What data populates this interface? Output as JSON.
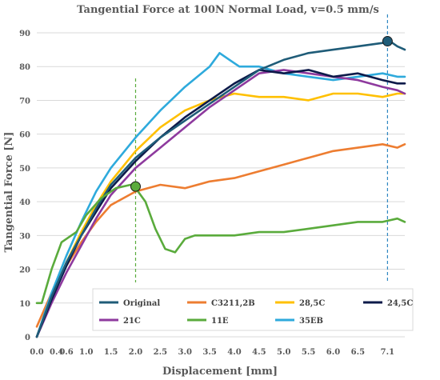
{
  "chart_data": {
    "type": "line",
    "title": "Tangential Force at  100N Normal Load, v=0.5 mm/s",
    "xlabel": "Displacement [mm]",
    "ylabel": "Tangential Force [N]",
    "xlim": [
      0,
      7.45
    ],
    "ylim": [
      0,
      90
    ],
    "x_ticks": [
      0.0,
      0.4,
      0.6,
      1.0,
      1.5,
      2.0,
      2.5,
      3.0,
      3.5,
      4.0,
      4.5,
      5.0,
      5.5,
      6.0,
      6.5,
      7.1
    ],
    "x_tick_labels": [
      "0.0",
      "0.4",
      "0.6",
      "1.0",
      "1.5",
      "2.0",
      "2.5",
      "3.0",
      "3.5",
      "4.0",
      "4.5",
      "5.0",
      "5.5",
      "6.0",
      "6.5",
      "7.1"
    ],
    "y_ticks": [
      0,
      10,
      20,
      30,
      40,
      50,
      60,
      70,
      80,
      90
    ],
    "y_tick_labels": [
      "0",
      "10",
      "20",
      "30",
      "40",
      "50",
      "60",
      "70",
      "80",
      "90"
    ],
    "grid": "horizontal",
    "legend_placement": "bottom-right",
    "series": [
      {
        "name": "Original",
        "color": "#1f5c78",
        "x": [
          0,
          0.3,
          0.6,
          0.9,
          1.2,
          1.5,
          2.0,
          2.5,
          3.0,
          3.5,
          4.0,
          4.5,
          5.0,
          5.5,
          6.0,
          6.5,
          7.0,
          7.1,
          7.3,
          7.45
        ],
        "y": [
          0,
          12,
          22,
          30,
          38,
          45,
          53,
          59,
          64,
          69,
          74,
          79,
          82,
          84,
          85,
          86,
          87,
          88,
          86,
          85
        ]
      },
      {
        "name": "C3211,2B",
        "color": "#ed7d31",
        "x": [
          0,
          0.3,
          0.6,
          0.9,
          1.2,
          1.5,
          2.0,
          2.5,
          3.0,
          3.5,
          4.0,
          4.5,
          5.0,
          5.5,
          6.0,
          6.5,
          7.0,
          7.3,
          7.45
        ],
        "y": [
          3,
          13,
          21,
          28,
          34,
          39,
          43,
          45,
          44,
          46,
          47,
          49,
          51,
          53,
          55,
          56,
          57,
          56,
          57
        ]
      },
      {
        "name": "28,5C",
        "color": "#ffc000",
        "x": [
          0,
          0.3,
          0.6,
          0.9,
          1.2,
          1.5,
          2.0,
          2.5,
          3.0,
          3.5,
          4.0,
          4.5,
          5.0,
          5.5,
          6.0,
          6.5,
          7.0,
          7.3,
          7.45
        ],
        "y": [
          0,
          12,
          22,
          31,
          39,
          46,
          55,
          62,
          67,
          70,
          72,
          71,
          71,
          70,
          72,
          72,
          71,
          72,
          72
        ]
      },
      {
        "name": "24,5C",
        "color": "#0d1a4a",
        "x": [
          0,
          0.3,
          0.6,
          0.9,
          1.2,
          1.5,
          2.0,
          2.5,
          3.0,
          3.5,
          4.0,
          4.5,
          5.0,
          5.5,
          6.0,
          6.5,
          7.0,
          7.3,
          7.45
        ],
        "y": [
          0,
          11,
          21,
          30,
          37,
          44,
          52,
          59,
          65,
          70,
          75,
          79,
          78,
          79,
          77,
          78,
          76,
          75,
          75
        ]
      },
      {
        "name": "21C",
        "color": "#8e3a9e",
        "x": [
          0,
          0.3,
          0.6,
          0.9,
          1.2,
          1.5,
          2.0,
          2.5,
          3.0,
          3.5,
          4.0,
          4.5,
          5.0,
          5.5,
          6.0,
          6.5,
          7.0,
          7.3,
          7.45
        ],
        "y": [
          0,
          10,
          19,
          27,
          35,
          42,
          50,
          56,
          62,
          68,
          73,
          78,
          79,
          78,
          77,
          76,
          74,
          73,
          72
        ]
      },
      {
        "name": "11E",
        "color": "#5aab3c",
        "x": [
          0,
          0.1,
          0.3,
          0.5,
          0.8,
          1.0,
          1.3,
          1.6,
          1.9,
          2.0,
          2.2,
          2.4,
          2.6,
          2.8,
          3.0,
          3.2,
          3.5,
          4.0,
          4.5,
          5.0,
          5.5,
          6.0,
          6.5,
          7.0,
          7.3,
          7.45
        ],
        "y": [
          10,
          10,
          20,
          28,
          31,
          36,
          41,
          44,
          45,
          44,
          40,
          32,
          26,
          25,
          29,
          30,
          30,
          30,
          31,
          31,
          32,
          33,
          34,
          34,
          35,
          34
        ]
      },
      {
        "name": "35EB",
        "color": "#2eaadc",
        "x": [
          0,
          0.3,
          0.6,
          0.9,
          1.2,
          1.5,
          2.0,
          2.5,
          3.0,
          3.5,
          3.7,
          3.9,
          4.1,
          4.5,
          5.0,
          5.5,
          6.0,
          6.5,
          7.0,
          7.3,
          7.45
        ],
        "y": [
          0,
          13,
          24,
          34,
          43,
          50,
          59,
          67,
          74,
          80,
          84,
          82,
          80,
          80,
          78,
          77,
          76,
          77,
          78,
          77,
          77
        ]
      }
    ],
    "vertical_lines": [
      {
        "x": 2.0,
        "color": "#5aab3c"
      },
      {
        "x": 7.1,
        "color": "#2e86c1"
      }
    ],
    "markers": [
      {
        "x": 2.0,
        "y": 44.5,
        "color": "#5aab3c"
      },
      {
        "x": 7.1,
        "y": 87.5,
        "color": "#1f5c78"
      }
    ]
  }
}
